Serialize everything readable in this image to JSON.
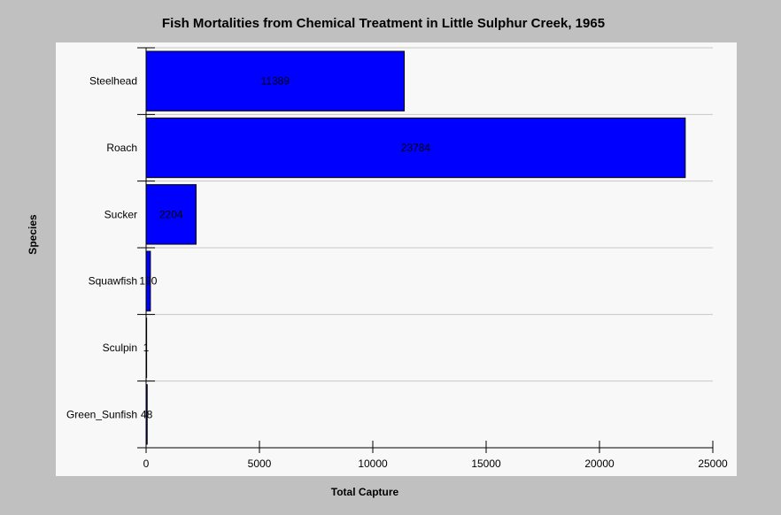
{
  "chart_data": {
    "type": "bar",
    "orientation": "horizontal",
    "title": "Fish Mortalities from Chemical Treatment in Little Sulphur Creek, 1965",
    "xlabel": "Total Capture",
    "ylabel": "Species",
    "categories": [
      "Steelhead",
      "Roach",
      "Sucker",
      "Squawfish",
      "Sculpin",
      "Green_Sunfish"
    ],
    "values": [
      11389,
      23784,
      2204,
      190,
      1,
      48
    ],
    "data_labels": [
      "11389",
      "23784",
      "2204",
      "190",
      "1",
      "48"
    ],
    "xlim": [
      0,
      25000
    ],
    "xticks": [
      "0",
      "5000",
      "10000",
      "15000",
      "20000",
      "25000"
    ],
    "grid": true,
    "bar_color": "#0000ff",
    "plot_background": "#f8f8f8",
    "page_background": "#c0c0c0"
  }
}
